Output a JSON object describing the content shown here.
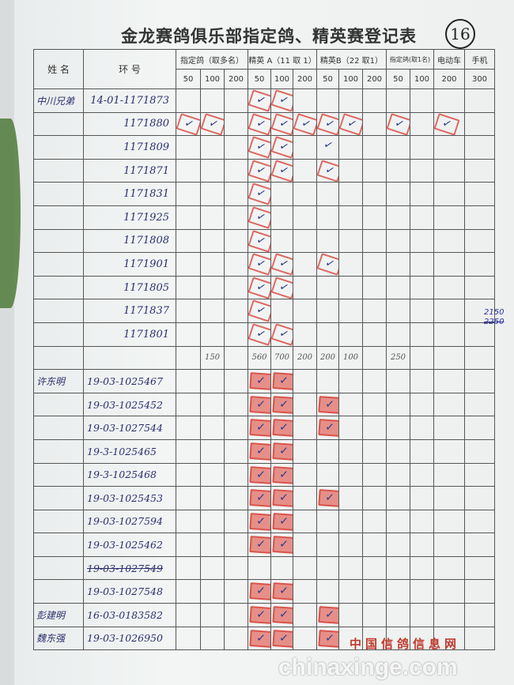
{
  "title": "金龙赛鸽俱乐部指定鸽、精英赛登记表",
  "page_number": "16",
  "headers": {
    "name": "姓 名",
    "ring": "环 号",
    "groups": [
      "指定鸽（取多名）",
      "精英 A（11 取 1）",
      "精英B（22 取1）",
      "指定鸽(取1名)",
      "电动车",
      "手机"
    ],
    "subs": [
      "50",
      "100",
      "200",
      "50",
      "100",
      "200",
      "50",
      "100",
      "200",
      "50",
      "100",
      "200",
      "300"
    ]
  },
  "rows": [
    {
      "name": "中川兄弟",
      "ring": "14-01-1171873",
      "marks": [
        3,
        4
      ],
      "group": 1
    },
    {
      "name": "",
      "ring": "1171880",
      "marks": [
        0,
        1,
        3,
        4,
        5,
        6,
        7,
        9,
        11
      ],
      "group": 1
    },
    {
      "name": "",
      "ring": "1171809",
      "marks": [
        3,
        4,
        6
      ],
      "group": 1
    },
    {
      "name": "",
      "ring": "1171871",
      "marks": [
        3,
        4,
        6
      ],
      "group": 1
    },
    {
      "name": "",
      "ring": "1171831",
      "marks": [
        3
      ],
      "group": 1
    },
    {
      "name": "",
      "ring": "1171925",
      "marks": [
        3
      ],
      "group": 1
    },
    {
      "name": "",
      "ring": "1171808",
      "marks": [
        3
      ],
      "group": 1
    },
    {
      "name": "",
      "ring": "1171901",
      "marks": [
        3,
        4,
        6
      ],
      "group": 1
    },
    {
      "name": "",
      "ring": "1171805",
      "marks": [
        3,
        4
      ],
      "group": 1
    },
    {
      "name": "",
      "ring": "1171837",
      "marks": [
        3
      ],
      "group": 1
    },
    {
      "name": "",
      "ring": "1171801",
      "marks": [
        3,
        4
      ],
      "group": 1
    },
    {
      "name": "",
      "ring": "",
      "marks": [],
      "group": 1,
      "subtotal": [
        "",
        "150",
        "",
        "560",
        "700",
        "200",
        "200",
        "100",
        "",
        "250",
        "",
        "",
        ""
      ]
    },
    {
      "name": "许东明",
      "ring": "19-03-1025467",
      "marks": [
        3,
        4
      ],
      "group": 2
    },
    {
      "name": "",
      "ring": "19-03-1025452",
      "marks": [
        3,
        4,
        6
      ],
      "group": 2
    },
    {
      "name": "",
      "ring": "19-03-1027544",
      "marks": [
        3,
        4,
        6
      ],
      "group": 2
    },
    {
      "name": "",
      "ring": "19-3-1025465",
      "marks": [
        3,
        4
      ],
      "group": 2
    },
    {
      "name": "",
      "ring": "19-3-1025468",
      "marks": [
        3,
        4
      ],
      "group": 2
    },
    {
      "name": "",
      "ring": "19-03-1025453",
      "marks": [
        3,
        4,
        6
      ],
      "group": 2
    },
    {
      "name": "",
      "ring": "19-03-1027594",
      "marks": [
        3,
        4
      ],
      "group": 2
    },
    {
      "name": "",
      "ring": "19-03-1025462",
      "marks": [
        3,
        4
      ],
      "group": 2
    },
    {
      "name": "",
      "ring": "19-03-1027549",
      "marks": [],
      "group": 2,
      "struck": true
    },
    {
      "name": "",
      "ring": "19-03-1027548",
      "marks": [
        3,
        4
      ],
      "group": 2
    },
    {
      "name": "彭建明",
      "ring": "16-03-0183582",
      "marks": [
        3,
        4,
        6
      ],
      "group": 2
    },
    {
      "name": "魏东强",
      "ring": "19-03-1026950",
      "marks": [
        3,
        4,
        6
      ],
      "group": 2
    }
  ],
  "margin_note": [
    "2150",
    "2250"
  ],
  "watermark": {
    "site": "chinaxinge.com",
    "name": "中国信鸽信息网"
  },
  "check_symbol": "✓",
  "colors": {
    "stamp": "#d63c32",
    "ink": "#2b2f6e"
  }
}
